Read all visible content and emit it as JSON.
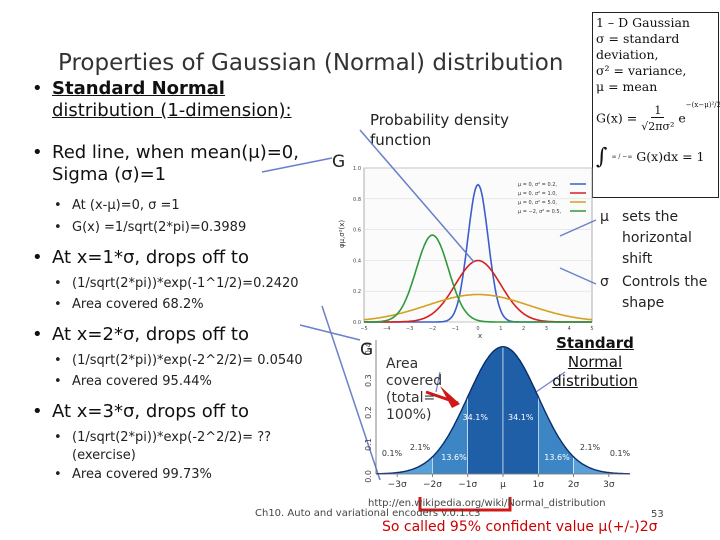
{
  "title": "Properties of Gaussian (Normal) distribution",
  "bullets": {
    "b1_prefix": "Standard Normal",
    "b1_line2": "distribution (1-dimension):",
    "b2_line1": "Red line, when mean(μ)=0,",
    "b2_line2": "Sigma (σ)=1",
    "b2_sub1": "At (x-μ)=0, σ =1",
    "b2_sub2": "G(x)  =1/sqrt(2*pi)=0.3989",
    "b3": "At x=1*σ, drops off to",
    "b3_sub1": "(1/sqrt(2*pi))*exp(-1^1/2)=0.2420",
    "b3_sub2": "Area covered 68.2%",
    "b4": "At x=2*σ, drops off to",
    "b4_sub1": "(1/sqrt(2*pi))*exp(-2^2/2)= 0.0540",
    "b4_sub2": "Area covered 95.44%",
    "b5": "At x=3*σ, drops off to",
    "b5_sub1a": "(1/sqrt(2*pi))*exp(-2^2/2)= ??",
    "b5_sub1b": "(exercise)",
    "b5_sub2": "Area covered 99.73%"
  },
  "formula_box": {
    "l1": "1 – D Gaussian",
    "l2": "σ = standard",
    "l3": "deviation,",
    "l4": "σ² = variance,",
    "l5": "μ = mean",
    "l6_left": "G(x) =",
    "l6_num": "1",
    "l6_den": "√2πσ²",
    "l6_e": "e",
    "l6_exp": "−(x−μ)²/2σ²",
    "l7_int": "∫",
    "l7_lims": "∞ / −∞",
    "l7_text": "G(x)dx = 1"
  },
  "pdf_label": {
    "l1": "Probability density",
    "l2": "function"
  },
  "g_label_1": "G",
  "g_label_2": "G",
  "right_notes": {
    "mu_sym": "μ",
    "mu_text1": "sets the",
    "mu_text2": "horizontal",
    "mu_text3": "shift",
    "sigma_sym": "σ",
    "sigma_text1": "Controls the",
    "sigma_text2": "shape"
  },
  "top_chart": {
    "ylabel": "φμ,σ²(x)",
    "yticks": [
      "1.0",
      "0.8",
      "0.6",
      "0.4",
      "0.2",
      "0.0"
    ],
    "xticks": [
      "−5",
      "−4",
      "−3",
      "−2",
      "−1",
      "0",
      "1",
      "2",
      "3",
      "4",
      "5"
    ],
    "xlabel": "x",
    "legend": [
      "μ = 0,  σ² = 0.2,",
      "μ = 0,  σ² = 1.0,",
      "μ = 0,  σ² = 5.0,",
      "μ = −2, σ² = 0.5,"
    ],
    "colors": [
      "#3a5fcd",
      "#d62020",
      "#d4a020",
      "#2e9a3a"
    ]
  },
  "std_chart_labels": {
    "title_l1": "Standard",
    "title_l2": "Normal",
    "title_l3": "distribution",
    "area_l1": "Area",
    "area_l2": "covered",
    "area_l3": "(total=",
    "area_l4": "100%)",
    "yticks": [
      "0.4",
      "0.3",
      "0.2",
      "0.1",
      "0.0"
    ],
    "pct_center_left": "34.1%",
    "pct_center_right": "34.1%",
    "pct_mid_left": "13.6%",
    "pct_mid_right": "13.6%",
    "pct_tail_left": "2.1%",
    "pct_tail_right": "2.1%",
    "pct_far_left": "0.1%",
    "pct_far_right": "0.1%",
    "xticks": [
      "−3σ",
      "−2σ",
      "−1σ",
      "μ",
      "1σ",
      "2σ",
      "3σ"
    ]
  },
  "footer": {
    "url": "http://en.wikipedia.org/wiki/Normal_distribution",
    "course": "Ch10. Auto and variational encoders v.0.1.c3",
    "page": "53",
    "confidence": "So called 95% confident value μ(+/-)2σ"
  }
}
